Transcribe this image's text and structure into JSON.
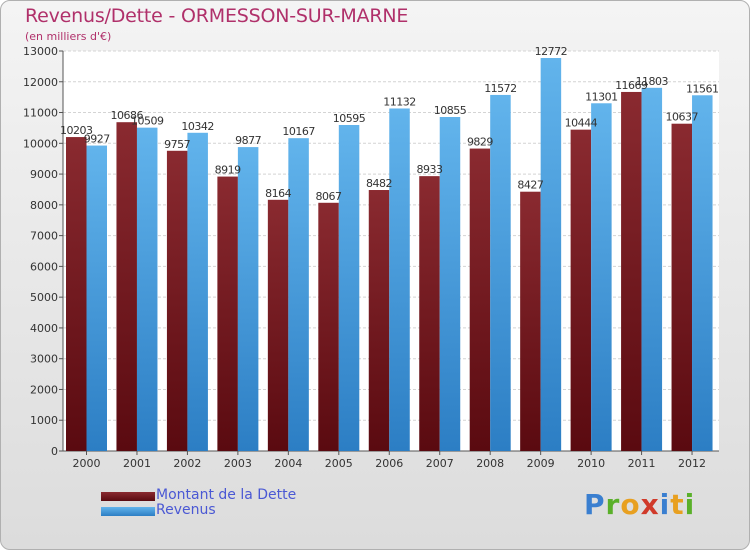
{
  "chart_data": {
    "type": "bar",
    "title": "Revenus/Dette - ORMESSON-SUR-MARNE",
    "subtitle": "(en milliers d'€)",
    "categories": [
      "2000",
      "2001",
      "2002",
      "2003",
      "2004",
      "2005",
      "2006",
      "2007",
      "2008",
      "2009",
      "2010",
      "2011",
      "2012"
    ],
    "series": [
      {
        "name": "Montant de la Dette",
        "color": "#7b1c22",
        "values": [
          10203,
          10686,
          9757,
          8919,
          8164,
          8067,
          8482,
          8933,
          9829,
          8427,
          10444,
          11669,
          10637
        ],
        "labels": [
          "10203",
          "10686",
          "9757",
          "8919",
          "8164",
          "8067",
          "8482",
          "8933",
          "9829",
          "8427",
          "10444",
          "11669",
          "10637"
        ]
      },
      {
        "name": "Revenus",
        "color": "#5aaae6",
        "values": [
          9927,
          10509,
          10342,
          9877,
          10167,
          10595,
          11132,
          10855,
          11572,
          12772,
          11301,
          11803,
          11561
        ],
        "labels": [
          "9927",
          "10509",
          "10342",
          "9877",
          "10167",
          "10595",
          "11132",
          "10855",
          "11572",
          "12772",
          "11301",
          "11803",
          "11561"
        ]
      }
    ],
    "ylim": [
      0,
      13000
    ],
    "yticks": [
      "0",
      "1000",
      "2000",
      "3000",
      "4000",
      "5000",
      "6000",
      "7000",
      "8000",
      "9000",
      "10000",
      "11000",
      "12000",
      "13000"
    ],
    "grid": true,
    "legend_position": "bottom-left"
  },
  "logo": {
    "text": "Proxiti",
    "letters": [
      {
        "ch": "P",
        "color": "#3a7fd0"
      },
      {
        "ch": "r",
        "color": "#5ab02a"
      },
      {
        "ch": "o",
        "color": "#e8a020"
      },
      {
        "ch": "x",
        "color": "#d03a2a"
      },
      {
        "ch": "i",
        "color": "#3a7fd0"
      },
      {
        "ch": "t",
        "color": "#e8a020"
      },
      {
        "ch": "i",
        "color": "#5ab02a"
      }
    ]
  }
}
